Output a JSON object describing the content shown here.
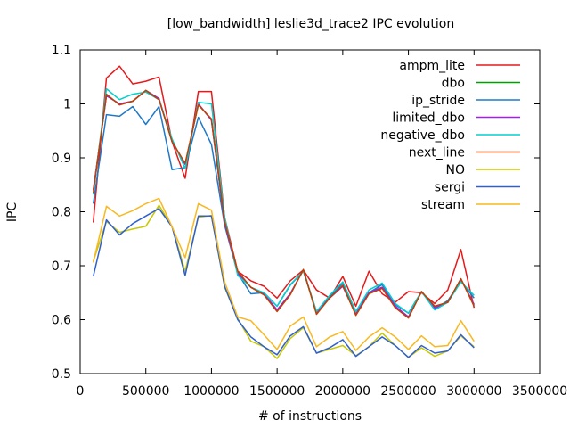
{
  "chart_data": {
    "type": "line",
    "title": "[low_bandwidth] leslie3d_trace2 IPC evolution",
    "xlabel": "# of instructions",
    "ylabel": "IPC",
    "xlim": [
      0,
      3500000
    ],
    "ylim": [
      0.5,
      1.1
    ],
    "xticks": [
      0,
      500000,
      1000000,
      1500000,
      2000000,
      2500000,
      3000000,
      3500000
    ],
    "yticks": [
      0.5,
      0.6,
      0.7,
      0.8,
      0.9,
      1,
      1.1
    ],
    "xtick_labels": [
      "0",
      "500000",
      "1000000",
      "1500000",
      "2000000",
      "2500000",
      "3000000",
      "3500000"
    ],
    "ytick_labels": [
      "0.5",
      "0.6",
      "0.7",
      "0.8",
      "0.9",
      "1",
      "1.1"
    ],
    "grid": false,
    "legend_position": "top-right",
    "x": [
      100000,
      200000,
      300000,
      400000,
      500000,
      600000,
      700000,
      800000,
      900000,
      1000000,
      1100000,
      1200000,
      1300000,
      1400000,
      1500000,
      1600000,
      1700000,
      1800000,
      1900000,
      2000000,
      2100000,
      2200000,
      2300000,
      2400000,
      2500000,
      2600000,
      2700000,
      2800000,
      2900000,
      3000000
    ],
    "series": [
      {
        "name": "ampm_lite",
        "color": "#e41a1c",
        "values": [
          0.78,
          1.048,
          1.07,
          1.037,
          1.042,
          1.05,
          0.93,
          0.862,
          1.023,
          1.023,
          0.79,
          0.69,
          0.672,
          0.662,
          0.64,
          0.672,
          0.692,
          0.655,
          0.64,
          0.68,
          0.625,
          0.69,
          0.648,
          0.632,
          0.652,
          0.65,
          0.63,
          0.655,
          0.73,
          0.622
        ]
      },
      {
        "name": "dbo",
        "color": "#00a000",
        "values": [
          0.84,
          1.015,
          1.0,
          1.005,
          1.025,
          1.01,
          0.93,
          0.888,
          1.0,
          0.97,
          0.78,
          0.686,
          0.66,
          0.648,
          0.618,
          0.648,
          0.692,
          0.612,
          0.64,
          0.662,
          0.61,
          0.65,
          0.66,
          0.625,
          0.605,
          0.652,
          0.622,
          0.632,
          0.675,
          0.628
        ]
      },
      {
        "name": "ip_stride",
        "color": "#1f78c8",
        "values": [
          0.815,
          0.98,
          0.977,
          0.995,
          0.962,
          0.995,
          0.878,
          0.882,
          0.975,
          0.925,
          0.775,
          0.686,
          0.648,
          0.65,
          0.625,
          0.664,
          0.69,
          0.615,
          0.642,
          0.668,
          0.615,
          0.65,
          0.665,
          0.628,
          0.612,
          0.652,
          0.62,
          0.635,
          0.672,
          0.64
        ]
      },
      {
        "name": "limited_dbo",
        "color": "#a020f0",
        "values": [
          0.84,
          1.015,
          1.0,
          1.005,
          1.025,
          1.01,
          0.93,
          0.888,
          1.0,
          0.97,
          0.78,
          0.686,
          0.66,
          0.648,
          0.618,
          0.648,
          0.692,
          0.612,
          0.64,
          0.662,
          0.61,
          0.65,
          0.66,
          0.625,
          0.605,
          0.652,
          0.622,
          0.632,
          0.675,
          0.628
        ]
      },
      {
        "name": "negative_dbo",
        "color": "#00d0d0",
        "values": [
          0.832,
          1.028,
          1.008,
          1.018,
          1.022,
          1.008,
          0.935,
          0.88,
          1.003,
          1.0,
          0.79,
          0.682,
          0.66,
          0.65,
          0.625,
          0.665,
          0.69,
          0.615,
          0.645,
          0.67,
          0.615,
          0.655,
          0.668,
          0.63,
          0.612,
          0.652,
          0.618,
          0.632,
          0.67,
          0.645
        ]
      },
      {
        "name": "next_line",
        "color": "#c04000",
        "values": [
          0.835,
          1.018,
          0.998,
          1.005,
          1.025,
          1.008,
          0.93,
          0.89,
          0.998,
          0.972,
          0.782,
          0.69,
          0.66,
          0.646,
          0.615,
          0.646,
          0.693,
          0.61,
          0.64,
          0.664,
          0.608,
          0.648,
          0.658,
          0.622,
          0.603,
          0.652,
          0.625,
          0.632,
          0.676,
          0.625
        ]
      },
      {
        "name": "NO",
        "color": "#c8c800",
        "values": [
          0.708,
          0.782,
          0.762,
          0.768,
          0.773,
          0.812,
          0.772,
          0.69,
          0.79,
          0.793,
          0.66,
          0.602,
          0.56,
          0.55,
          0.528,
          0.565,
          0.585,
          0.538,
          0.545,
          0.552,
          0.533,
          0.55,
          0.575,
          0.552,
          0.53,
          0.548,
          0.532,
          0.542,
          0.57,
          0.55
        ]
      },
      {
        "name": "sergi",
        "color": "#3060d0",
        "values": [
          0.68,
          0.785,
          0.757,
          0.778,
          0.792,
          0.806,
          0.772,
          0.682,
          0.792,
          0.792,
          0.662,
          0.6,
          0.568,
          0.55,
          0.535,
          0.57,
          0.587,
          0.538,
          0.548,
          0.563,
          0.532,
          0.55,
          0.568,
          0.552,
          0.53,
          0.552,
          0.538,
          0.542,
          0.572,
          0.548
        ]
      },
      {
        "name": "stream",
        "color": "#f8b820",
        "values": [
          0.706,
          0.81,
          0.792,
          0.802,
          0.815,
          0.825,
          0.772,
          0.715,
          0.815,
          0.803,
          0.67,
          0.605,
          0.598,
          0.572,
          0.545,
          0.588,
          0.605,
          0.55,
          0.568,
          0.578,
          0.543,
          0.568,
          0.585,
          0.568,
          0.545,
          0.57,
          0.55,
          0.552,
          0.598,
          0.56
        ]
      }
    ]
  }
}
